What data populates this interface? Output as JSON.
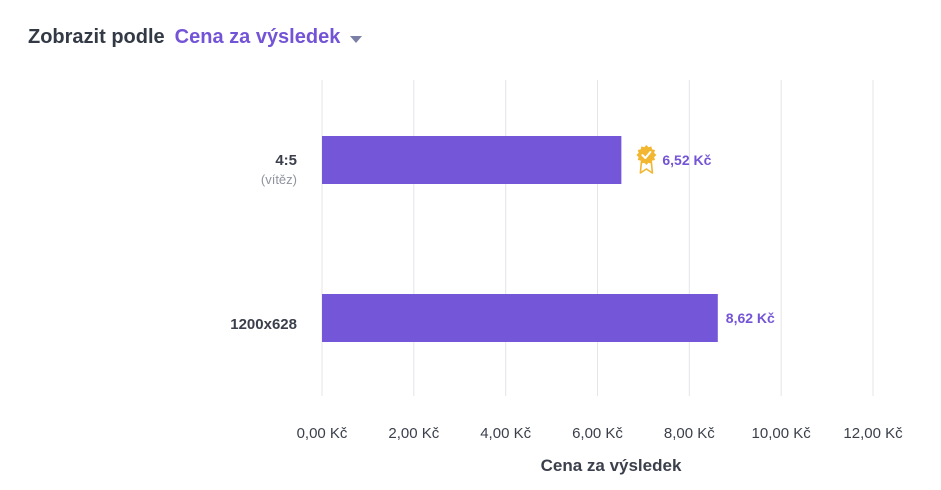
{
  "header": {
    "label": "Zobrazit podle",
    "dropdown_value": "Cena za výsledek"
  },
  "colors": {
    "bar": "#7456d8",
    "value_label": "#7454d6",
    "grid": "#e4e4ea",
    "text": "#3a3f4b",
    "subtext": "#8e939e",
    "badge": "#f2b630"
  },
  "chart_data": {
    "type": "bar",
    "orientation": "horizontal",
    "categories": [
      "4:5",
      "1200x628"
    ],
    "category_sublabels": [
      "(vítěz)",
      ""
    ],
    "values": [
      6.52,
      8.62
    ],
    "value_labels": [
      "6,52 Kč",
      "8,62 Kč"
    ],
    "winner_index": 0,
    "winner_icon": "award-badge-icon",
    "xlim": [
      0,
      12
    ],
    "xticks": [
      0,
      2,
      4,
      6,
      8,
      10,
      12
    ],
    "xtick_labels": [
      "0,00 Kč",
      "2,00 Kč",
      "4,00 Kč",
      "6,00 Kč",
      "8,00 Kč",
      "10,00 Kč",
      "12,00 Kč"
    ],
    "xlabel": "Cena za výsledek",
    "ylabel": "",
    "title": "",
    "grid": true
  }
}
